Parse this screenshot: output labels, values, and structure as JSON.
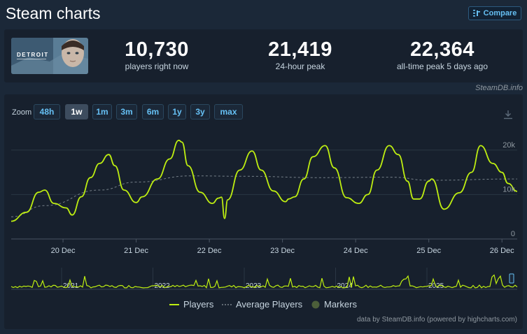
{
  "header": {
    "title": "Steam charts",
    "compare_label": "Compare"
  },
  "game": {
    "logo_text": "DETROIT"
  },
  "stats": [
    {
      "value": "10,730",
      "label": "players right now"
    },
    {
      "value": "21,419",
      "label": "24-hour peak"
    },
    {
      "value": "22,364",
      "label": "all-time peak 5 days ago"
    }
  ],
  "watermark": "SteamDB.info",
  "zoom": {
    "label": "Zoom",
    "options": [
      "48h",
      "1w",
      "1m",
      "3m",
      "6m",
      "1y",
      "3y",
      "max"
    ],
    "selected": "1w"
  },
  "legend": {
    "players": "Players",
    "average": "Average Players",
    "markers": "Markers"
  },
  "footer": "data by SteamDB.info (powered by highcharts.com)",
  "colors": {
    "players": "#beee11",
    "average": "#8f98a0",
    "markers": "#4c5f3a",
    "accent": "#66c0f4",
    "background": "#1b2838"
  },
  "chart_data": {
    "type": "line",
    "x_ticks": [
      "20 Dec",
      "21 Dec",
      "22 Dec",
      "23 Dec",
      "24 Dec",
      "25 Dec",
      "26 Dec"
    ],
    "y_ticks": [
      "0",
      "10k",
      "20k"
    ],
    "ylim": [
      0,
      25000
    ],
    "xlim": [
      "19 Dec 07:00",
      "26 Dec 05:00"
    ],
    "grid": true,
    "legend_position": "bottom",
    "series": [
      {
        "name": "Players",
        "x": [
          "19 Dec 07:00",
          "19 Dec 12:00",
          "19 Dec 16:00",
          "19 Dec 18:00",
          "19 Dec 21:00",
          "20 Dec 01:00",
          "20 Dec 03:00",
          "20 Dec 06:00",
          "20 Dec 09:00",
          "20 Dec 12:00",
          "20 Dec 15:00",
          "20 Dec 17:00",
          "20 Dec 20:00",
          "21 Dec 00:00",
          "21 Dec 02:00",
          "21 Dec 07:00",
          "21 Dec 11:00",
          "21 Dec 14:00",
          "21 Dec 15:00",
          "21 Dec 17:00",
          "21 Dec 21:00",
          "22 Dec 01:00",
          "22 Dec 03:00",
          "22 Dec 04:00",
          "22 Dec 05:00",
          "22 Dec 06:00",
          "22 Dec 10:00",
          "22 Dec 14:00",
          "22 Dec 17:00",
          "22 Dec 21:00",
          "23 Dec 01:00",
          "23 Dec 02:00",
          "23 Dec 04:00",
          "23 Dec 07:00",
          "23 Dec 10:00",
          "23 Dec 14:00",
          "23 Dec 17:00",
          "23 Dec 21:00",
          "24 Dec 01:00",
          "24 Dec 04:00",
          "24 Dec 07:00",
          "24 Dec 11:00",
          "24 Dec 14:00",
          "24 Dec 17:00",
          "24 Dec 19:00",
          "24 Dec 21:00",
          "25 Dec 00:00",
          "25 Dec 01:00",
          "25 Dec 05:00",
          "25 Dec 10:00",
          "25 Dec 14:00",
          "25 Dec 17:00",
          "25 Dec 21:00",
          "26 Dec 00:00",
          "26 Dec 02:00",
          "26 Dec 05:00"
        ],
        "values": [
          4000,
          6000,
          10500,
          11000,
          8000,
          7000,
          5400,
          9500,
          13800,
          17000,
          19000,
          16500,
          11000,
          8200,
          9500,
          13500,
          18000,
          22200,
          21800,
          16500,
          10500,
          8000,
          9200,
          9400,
          4600,
          8800,
          15500,
          19800,
          15500,
          10800,
          8400,
          9000,
          9500,
          13500,
          18500,
          21000,
          16000,
          9300,
          8000,
          10000,
          15500,
          21000,
          19000,
          13000,
          9000,
          9000,
          13000,
          13500,
          6700,
          10400,
          15000,
          21000,
          17000,
          15000,
          12500,
          10700
        ]
      },
      {
        "name": "Average Players",
        "x": [
          "19 Dec 07:00",
          "19 Dec 18:00",
          "20 Dec 12:00",
          "21 Dec 00:00",
          "21 Dec 18:00",
          "22 Dec 12:00",
          "23 Dec 12:00",
          "24 Dec 12:00",
          "25 Dec 00:00",
          "26 Dec 05:00"
        ],
        "values": [
          5000,
          7500,
          11000,
          12800,
          14200,
          14100,
          13800,
          13900,
          13200,
          13500
        ]
      }
    ],
    "navigator": {
      "year_ticks": [
        "2021",
        "2022",
        "2023",
        "2024",
        "2025"
      ]
    }
  }
}
